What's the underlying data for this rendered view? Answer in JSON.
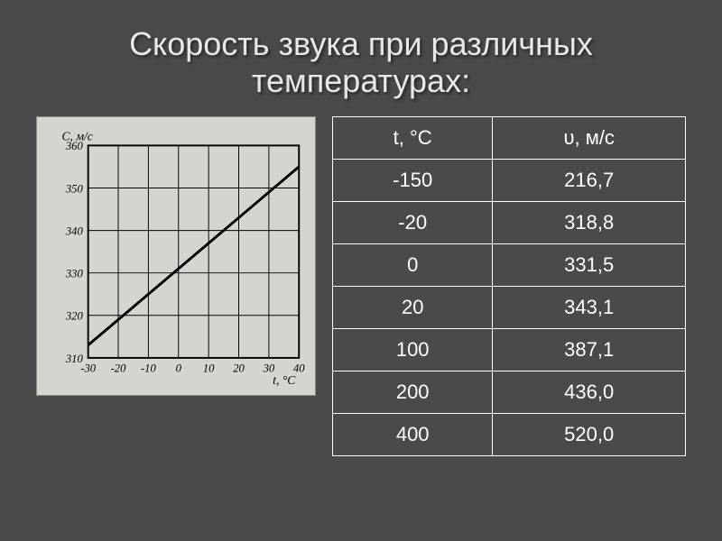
{
  "title_line1": "Скорость звука при различных",
  "title_line2": "температурах:",
  "table": {
    "header": {
      "col1": "t, °С",
      "col2": "υ, м/с"
    },
    "rows": [
      {
        "t": "-150",
        "v": "216,7"
      },
      {
        "t": "-20",
        "v": "318,8"
      },
      {
        "t": "0",
        "v": "331,5"
      },
      {
        "t": "20",
        "v": "343,1"
      },
      {
        "t": "100",
        "v": "387,1"
      },
      {
        "t": "200",
        "v": "436,0"
      },
      {
        "t": "400",
        "v": "520,0"
      }
    ],
    "border_color": "#ffffff",
    "text_color": "#ffffff",
    "font_size": 22
  },
  "chart": {
    "type": "line",
    "ylabel": "C, м/c",
    "xlabel": "t, °C",
    "xlim": [
      -30,
      40
    ],
    "ylim": [
      310,
      360
    ],
    "xtick_step": 10,
    "ytick_step": 10,
    "xticks": [
      -30,
      -20,
      -10,
      0,
      10,
      20,
      30,
      40
    ],
    "yticks": [
      310,
      320,
      330,
      340,
      350,
      360
    ],
    "line_points": [
      {
        "x": -30,
        "y": 313
      },
      {
        "x": 40,
        "y": 355
      }
    ],
    "line_color": "#000000",
    "line_width": 3,
    "grid_color": "#000000",
    "grid_width": 1,
    "background_color": "#d5d5d0",
    "axis_label_fontsize": 14,
    "tick_fontsize": 13,
    "font_family": "serif-italic"
  },
  "colors": {
    "page_bg": "#4a4a4a",
    "title_color": "#e8e8e8"
  }
}
